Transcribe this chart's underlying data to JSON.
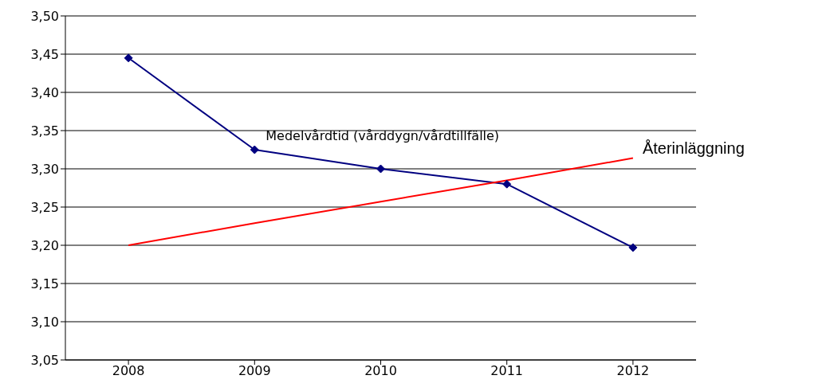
{
  "chart_data": {
    "type": "line",
    "categories": [
      "2008",
      "2009",
      "2010",
      "2011",
      "2012"
    ],
    "series": [
      {
        "name": "Medelvårdtid (vårddygn/vårdtillfälle)",
        "color": "#000080",
        "marker": "diamond",
        "values": [
          3.445,
          3.325,
          3.3,
          3.28,
          3.197
        ]
      },
      {
        "name": "Återinläggning",
        "color": "#ff0000",
        "marker": "none",
        "values": [
          3.2,
          3.229,
          3.257,
          3.285,
          3.314
        ]
      }
    ],
    "ylim": [
      3.05,
      3.5
    ],
    "yticks": [
      {
        "value": 3.05,
        "label": "3,05"
      },
      {
        "value": 3.1,
        "label": "3,10"
      },
      {
        "value": 3.15,
        "label": "3,15"
      },
      {
        "value": 3.2,
        "label": "3,20"
      },
      {
        "value": 3.25,
        "label": "3,25"
      },
      {
        "value": 3.3,
        "label": "3,30"
      },
      {
        "value": 3.35,
        "label": "3,35"
      },
      {
        "value": 3.4,
        "label": "3,40"
      },
      {
        "value": 3.45,
        "label": "3,45"
      },
      {
        "value": 3.5,
        "label": "3,50"
      }
    ],
    "grid": "y",
    "legend": false,
    "line_style": "solid"
  }
}
